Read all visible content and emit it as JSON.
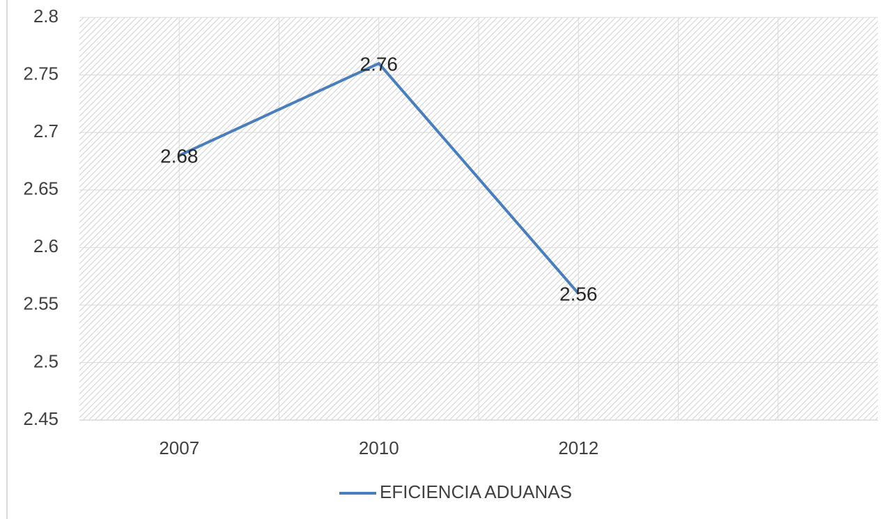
{
  "chart_data": {
    "type": "line",
    "categories": [
      "2007",
      "2010",
      "2012",
      null
    ],
    "series": [
      {
        "name": "EFICIENCIA ADUANAS",
        "color": "#4a7ebb",
        "values": [
          2.68,
          2.76,
          2.56,
          null
        ]
      }
    ],
    "ylim": [
      2.45,
      2.8
    ],
    "yticks": [
      2.45,
      2.5,
      2.55,
      2.6,
      2.65,
      2.7,
      2.75,
      2.8
    ],
    "grid": true,
    "legend": "bottom"
  }
}
